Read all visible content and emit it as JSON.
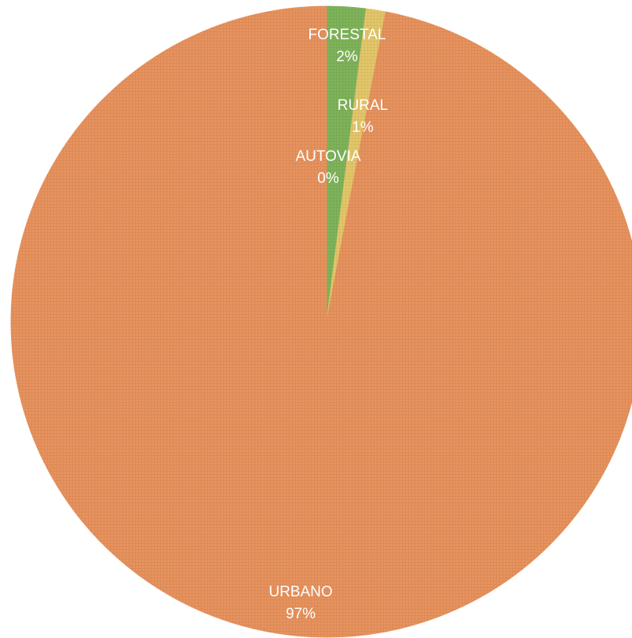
{
  "chart_data": {
    "type": "pie",
    "categories": [
      "AUTOVIA",
      "FORESTAL",
      "RURAL",
      "URBANO"
    ],
    "values": [
      0,
      2,
      1,
      97
    ],
    "value_labels": [
      "0%",
      "2%",
      "1%",
      "97%"
    ],
    "colors": [
      "#4f7fc4",
      "#7fb45a",
      "#e4c76a",
      "#e8935e"
    ]
  }
}
